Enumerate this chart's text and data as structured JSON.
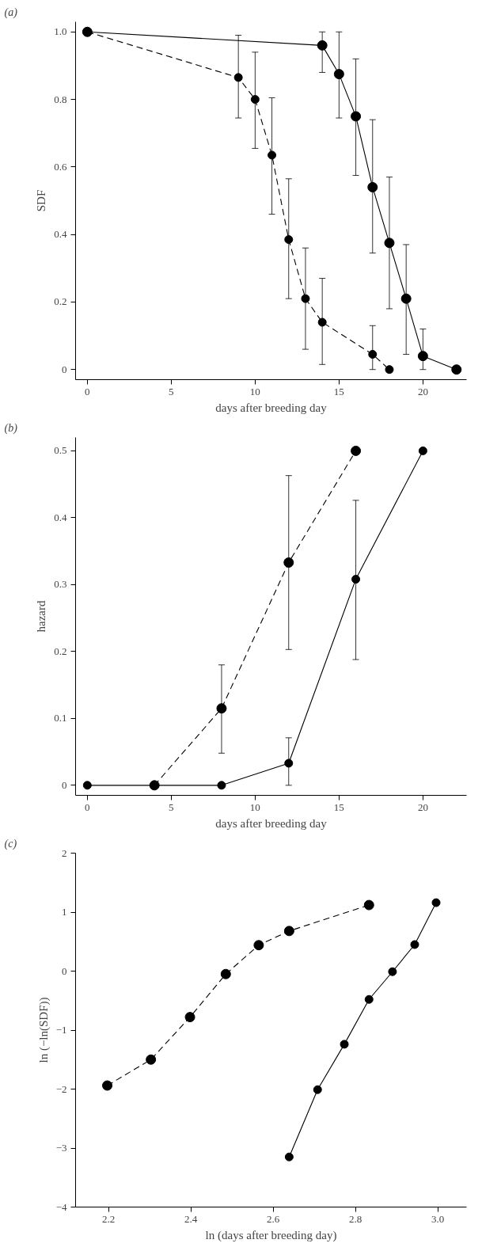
{
  "chart_data": [
    {
      "type": "line",
      "annotations": [
        "(a)"
      ],
      "xlabel": "days after breeding day",
      "ylabel": "SDF",
      "xlim": [
        -0.7,
        22.6
      ],
      "ylim": [
        -0.03,
        1.03
      ],
      "xticks": [
        0,
        5,
        10,
        15,
        20
      ],
      "yticks": [
        {
          "value": 0,
          "label": "0"
        },
        {
          "value": 0.2,
          "label": "0.2"
        },
        {
          "value": 0.4,
          "label": "0.4"
        },
        {
          "value": 0.6,
          "label": "0.6"
        },
        {
          "value": 0.8,
          "label": "0.8"
        },
        {
          "value": 1.0,
          "label": "1.0"
        }
      ],
      "grid": false,
      "marker": "circle",
      "series": [
        {
          "color": "#000000",
          "line_style": "solid",
          "x": [
            0,
            14,
            15,
            16,
            17,
            18,
            19,
            20,
            22
          ],
          "values": [
            1.0,
            0.96,
            0.875,
            0.75,
            0.54,
            0.375,
            0.21,
            0.04,
            0
          ],
          "errors": [
            null,
            [
              0.88,
              1.0
            ],
            [
              0.745,
              1.0
            ],
            [
              0.575,
              0.92
            ],
            [
              0.345,
              0.74
            ],
            [
              0.18,
              0.57
            ],
            [
              0.045,
              0.37
            ],
            [
              0,
              0.12
            ],
            null
          ]
        },
        {
          "color": "#000000",
          "line_style": "dashed",
          "x": [
            0,
            9,
            10,
            11,
            12,
            13,
            14,
            17,
            18
          ],
          "values": [
            1.0,
            0.865,
            0.8,
            0.635,
            0.385,
            0.21,
            0.14,
            0.045,
            0
          ],
          "errors": [
            null,
            [
              0.745,
              0.99
            ],
            [
              0.655,
              0.94
            ],
            [
              0.46,
              0.805
            ],
            [
              0.21,
              0.565
            ],
            [
              0.06,
              0.36
            ],
            [
              0.015,
              0.27
            ],
            [
              0,
              0.13
            ],
            null
          ]
        }
      ]
    },
    {
      "type": "line",
      "annotations": [
        "(b)"
      ],
      "xlabel": "days after breeding day",
      "ylabel": "hazard",
      "xlim": [
        -0.7,
        22.6
      ],
      "ylim": [
        -0.015,
        0.52
      ],
      "xticks": [
        0,
        5,
        10,
        15,
        20
      ],
      "yticks": [
        {
          "value": 0,
          "label": "0"
        },
        0.1,
        0.2,
        0.3,
        0.4,
        0.5
      ],
      "grid": false,
      "marker": "circle",
      "series": [
        {
          "color": "#000000",
          "line_style": "dashed",
          "x": [
            4,
            8,
            12,
            16
          ],
          "values": [
            0,
            0.115,
            0.333,
            0.5
          ],
          "errors": [
            null,
            [
              0.048,
              0.18
            ],
            [
              0.203,
              0.463
            ],
            null
          ]
        },
        {
          "color": "#000000",
          "line_style": "solid",
          "x": [
            0,
            4,
            8,
            12,
            16,
            20
          ],
          "values": [
            0,
            0,
            0,
            0.033,
            0.308,
            0.5
          ],
          "errors": [
            null,
            null,
            null,
            [
              0,
              0.071
            ],
            [
              0.188,
              0.426
            ],
            null
          ]
        }
      ]
    },
    {
      "type": "line",
      "annotations": [
        "(c)"
      ],
      "xlabel": "ln (days after breeding day)",
      "ylabel": "ln (−ln(SDF))",
      "xlim": [
        2.12,
        3.07
      ],
      "ylim": [
        -4,
        2
      ],
      "xticks": [
        2.2,
        2.4,
        2.6,
        2.8,
        {
          "value": 3.0,
          "label": "3.0"
        }
      ],
      "yticks": [
        {
          "value": -4,
          "label": "−4"
        },
        {
          "value": -3,
          "label": "−3"
        },
        {
          "value": -2,
          "label": "−2"
        },
        {
          "value": -1,
          "label": "−1"
        },
        0,
        1,
        2
      ],
      "grid": false,
      "marker": "circle",
      "series": [
        {
          "color": "#000000",
          "line_style": "dashed",
          "x": [
            2.197,
            2.303,
            2.398,
            2.485,
            2.565,
            2.639,
            2.833
          ],
          "values": [
            -1.94,
            -1.5,
            -0.78,
            -0.05,
            0.44,
            0.68,
            1.12
          ]
        },
        {
          "color": "#000000",
          "line_style": "solid",
          "x": [
            2.639,
            2.708,
            2.773,
            2.833,
            2.89,
            2.944,
            2.996
          ],
          "values": [
            -3.15,
            -2.01,
            -1.24,
            -0.48,
            -0.01,
            0.45,
            1.16
          ]
        }
      ]
    }
  ]
}
